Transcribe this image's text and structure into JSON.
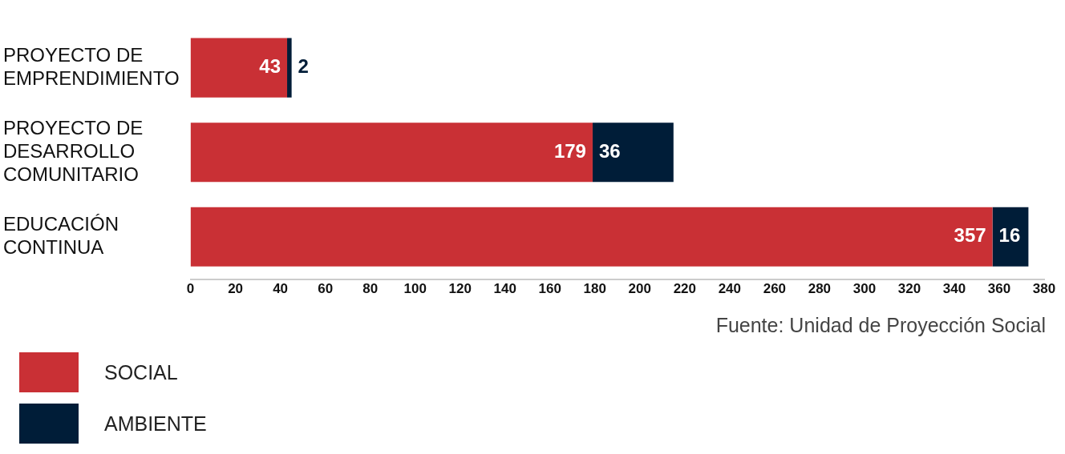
{
  "chart_data": {
    "type": "bar",
    "orientation": "horizontal",
    "stacked": true,
    "categories": [
      "PROYECTO DE EMPRENDIMIENTO",
      "PROYECTO DE DESARROLLO COMUNITARIO",
      "EDUCACIÓN CONTINUA"
    ],
    "series": [
      {
        "name": "SOCIAL",
        "color": "#c93035",
        "values": [
          43,
          179,
          357
        ]
      },
      {
        "name": "AMBIENTE",
        "color": "#001d38",
        "values": [
          2,
          36,
          16
        ]
      }
    ],
    "xlim": [
      0,
      380
    ],
    "xticks": [
      0,
      20,
      40,
      60,
      80,
      100,
      120,
      140,
      160,
      180,
      200,
      220,
      240,
      260,
      280,
      300,
      320,
      340,
      360,
      380
    ],
    "grid": false,
    "legend": "bottom left",
    "data_labels": true,
    "annotations": [
      "Fuente: Unidad de Proyección Social"
    ]
  }
}
